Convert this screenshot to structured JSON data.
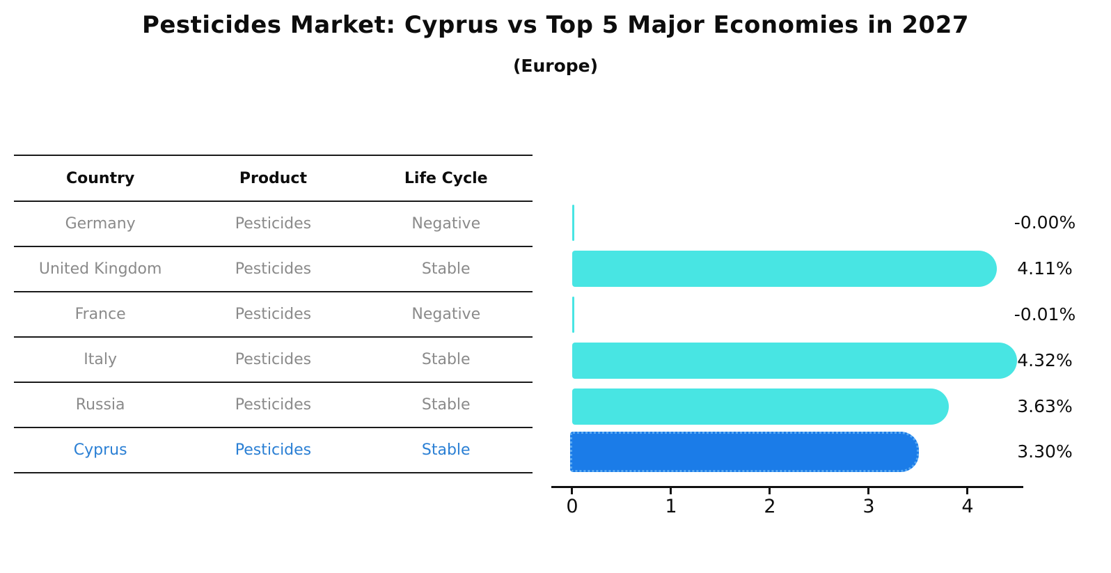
{
  "title": "Pesticides Market: Cyprus vs Top 5 Major Economies in 2027",
  "subtitle": "(Europe)",
  "table": {
    "headers": [
      "Country",
      "Product",
      "Life Cycle"
    ],
    "rows": [
      {
        "country": "Germany",
        "product": "Pesticides",
        "life_cycle": "Negative",
        "highlight": false
      },
      {
        "country": "United Kingdom",
        "product": "Pesticides",
        "life_cycle": "Stable",
        "highlight": false
      },
      {
        "country": "France",
        "product": "Pesticides",
        "life_cycle": "Negative",
        "highlight": false
      },
      {
        "country": "Italy",
        "product": "Pesticides",
        "life_cycle": "Stable",
        "highlight": false
      },
      {
        "country": "Russia",
        "product": "Pesticides",
        "life_cycle": "Stable",
        "highlight": true
      }
    ],
    "highlight_row": {
      "country": "Cyprus",
      "product": "Pesticides",
      "life_cycle": "Stable"
    }
  },
  "chart_data": {
    "type": "bar",
    "orientation": "horizontal",
    "categories": [
      "Germany",
      "United Kingdom",
      "France",
      "Italy",
      "Russia",
      "Cyprus"
    ],
    "values": [
      -0.0,
      4.11,
      -0.01,
      4.32,
      3.63,
      3.3
    ],
    "labels": [
      "-0.00%",
      "4.11%",
      "-0.01%",
      "4.32%",
      "3.63%",
      "3.30%"
    ],
    "title": "Pesticides Market: Cyprus vs Top 5 Major Economies in 2027",
    "subtitle": "(Europe)",
    "xlabel": "",
    "ylabel": "",
    "xticks": [
      "0",
      "1",
      "2",
      "3",
      "4"
    ],
    "xlim": [
      0,
      4.6
    ],
    "grid": false,
    "legend": "none",
    "highlight_category": "Cyprus"
  },
  "colors": {
    "bar": "#48e5e3",
    "highlight_bar": "#1b7ce8",
    "highlight_border": "#5aa9f2",
    "highlight_text": "#2a7fd4",
    "row_text": "#8a8a8a",
    "header_text": "#0d0d0d",
    "axis": "#111111"
  }
}
